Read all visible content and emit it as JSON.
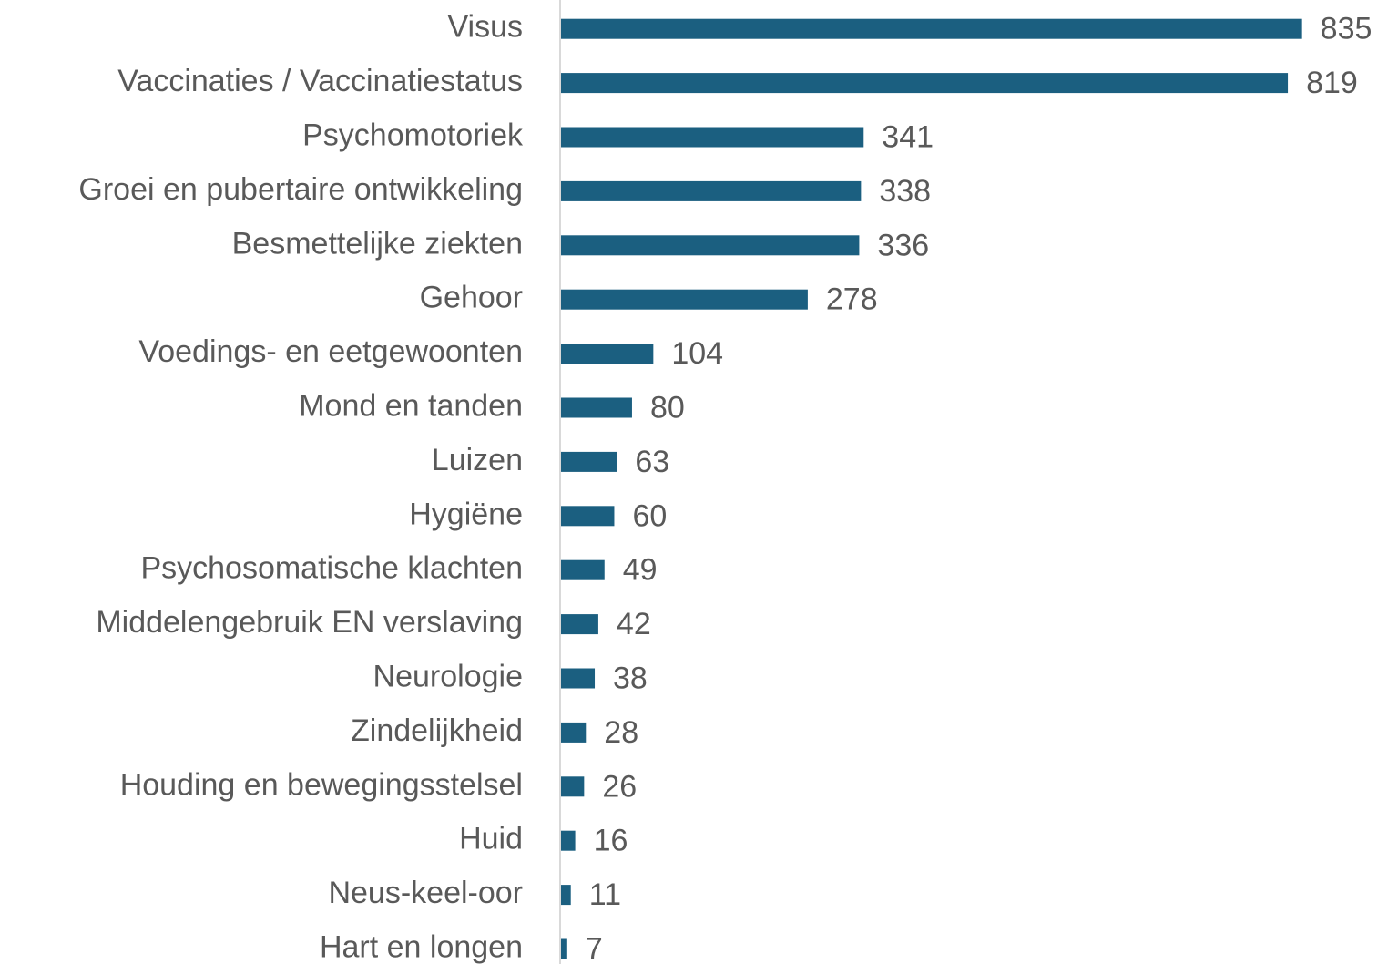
{
  "chart_data": {
    "type": "bar",
    "orientation": "horizontal",
    "categories": [
      "Visus",
      "Vaccinaties / Vaccinatiestatus",
      "Psychomotoriek",
      "Groei en pubertaire ontwikkeling",
      "Besmettelijke ziekten",
      "Gehoor",
      "Voedings- en eetgewoonten",
      "Mond en tanden",
      "Luizen",
      "Hygiëne",
      "Psychosomatische klachten",
      "Middelengebruik EN verslaving",
      "Neurologie",
      "Zindelijkheid",
      "Houding en bewegingsstelsel",
      "Huid",
      "Neus-keel-oor",
      "Hart en longen"
    ],
    "values": [
      835,
      819,
      341,
      338,
      336,
      278,
      104,
      80,
      63,
      60,
      49,
      42,
      38,
      28,
      26,
      16,
      11,
      7
    ],
    "color": "#1b5f80",
    "xlim": [
      0,
      900
    ]
  }
}
